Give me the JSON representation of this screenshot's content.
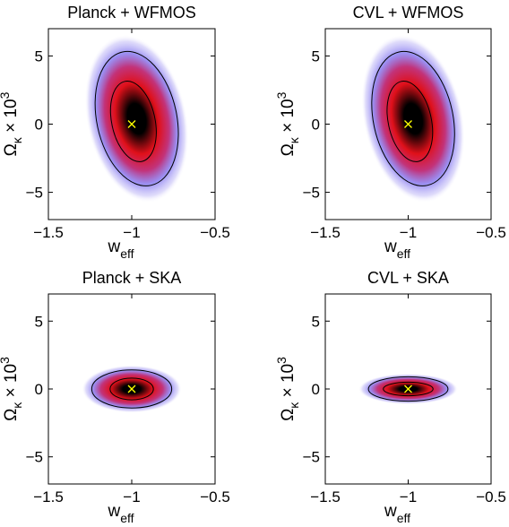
{
  "chart_data": [
    {
      "type": "contour",
      "title": "Planck + WFMOS",
      "xlabel": "w_eff",
      "ylabel": "Ω_κ × 10^3",
      "xlim": [
        -1.5,
        -0.5
      ],
      "ylim": [
        -7,
        7
      ],
      "xticks": [
        -1.5,
        -1,
        -0.5
      ],
      "xtick_labels": [
        "−1.5",
        "−1",
        "−0.5"
      ],
      "yticks": [
        5,
        0,
        -5
      ],
      "ytick_labels": [
        "5",
        "0",
        "−5"
      ],
      "fiducial": {
        "x": -1.0,
        "y": 0.0
      },
      "contours": [
        {
          "level": "inner",
          "center": [
            -0.99,
            0.2
          ],
          "half_width_x": 0.13,
          "half_height_y": 3.0,
          "tilt_deg": -12
        },
        {
          "level": "outer",
          "center": [
            -0.97,
            0.4
          ],
          "half_width_x": 0.24,
          "half_height_y": 5.0,
          "tilt_deg": -12
        }
      ]
    },
    {
      "type": "contour",
      "title": "CVL + WFMOS",
      "xlabel": "w_eff",
      "ylabel": "Ω_κ × 10^3",
      "xlim": [
        -1.5,
        -0.5
      ],
      "ylim": [
        -7,
        7
      ],
      "xticks": [
        -1.5,
        -1,
        -0.5
      ],
      "xtick_labels": [
        "−1.5",
        "−1",
        "−0.5"
      ],
      "yticks": [
        5,
        0,
        -5
      ],
      "ytick_labels": [
        "5",
        "0",
        "−5"
      ],
      "fiducial": {
        "x": -1.0,
        "y": 0.0
      },
      "contours": [
        {
          "level": "inner",
          "center": [
            -0.99,
            0.2
          ],
          "half_width_x": 0.13,
          "half_height_y": 3.0,
          "tilt_deg": -12
        },
        {
          "level": "outer",
          "center": [
            -0.97,
            0.4
          ],
          "half_width_x": 0.24,
          "half_height_y": 5.0,
          "tilt_deg": -12
        }
      ]
    },
    {
      "type": "contour",
      "title": "Planck + SKA",
      "xlabel": "w_eff",
      "ylabel": "Ω_κ × 10^3",
      "xlim": [
        -1.5,
        -0.5
      ],
      "ylim": [
        -7,
        7
      ],
      "xticks": [
        -1.5,
        -1,
        -0.5
      ],
      "xtick_labels": [
        "−1.5",
        "−1",
        "−0.5"
      ],
      "yticks": [
        5,
        0,
        -5
      ],
      "ytick_labels": [
        "5",
        "0",
        "−5"
      ],
      "fiducial": {
        "x": -1.0,
        "y": 0.0
      },
      "contours": [
        {
          "level": "inner",
          "center": [
            -1.0,
            0.0
          ],
          "half_width_x": 0.13,
          "half_height_y": 0.8,
          "tilt_deg": 0
        },
        {
          "level": "outer",
          "center": [
            -1.0,
            0.0
          ],
          "half_width_x": 0.24,
          "half_height_y": 1.4,
          "tilt_deg": 0
        }
      ]
    },
    {
      "type": "contour",
      "title": "CVL + SKA",
      "xlabel": "w_eff",
      "ylabel": "Ω_κ × 10^3",
      "xlim": [
        -1.5,
        -0.5
      ],
      "ylim": [
        -7,
        7
      ],
      "xticks": [
        -1.5,
        -1,
        -0.5
      ],
      "xtick_labels": [
        "−1.5",
        "−1",
        "−0.5"
      ],
      "yticks": [
        5,
        0,
        -5
      ],
      "ytick_labels": [
        "5",
        "0",
        "−5"
      ],
      "fiducial": {
        "x": -1.0,
        "y": 0.0
      },
      "contours": [
        {
          "level": "inner",
          "center": [
            -1.0,
            0.0
          ],
          "half_width_x": 0.15,
          "half_height_y": 0.5,
          "tilt_deg": 0
        },
        {
          "level": "outer",
          "center": [
            -1.0,
            0.0
          ],
          "half_width_x": 0.24,
          "half_height_y": 0.9,
          "tilt_deg": 0
        }
      ]
    }
  ],
  "colors": {
    "core": "#000000",
    "mid": "#e0101a",
    "halo": "#7a6cf0",
    "contour_line": "#000000",
    "fiducial_marker": "#ffff00"
  }
}
